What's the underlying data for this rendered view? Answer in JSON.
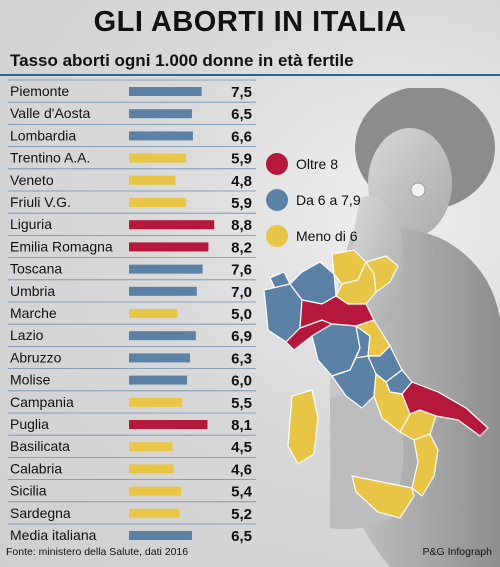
{
  "header": {
    "title": "GLI ABORTI IN ITALIA",
    "subtitle": "Tasso aborti ogni 1.000 donne in età fertile"
  },
  "legend": [
    {
      "label": "Oltre 8",
      "color": "#b5183a"
    },
    {
      "label": "Da 6 a 7,9",
      "color": "#5b82a6"
    },
    {
      "label": "Meno di 6",
      "color": "#e8c547"
    }
  ],
  "footer": {
    "source": "Fonte: ministero della Salute, dati 2016",
    "credit": "P&G Infograph"
  },
  "chart_data": {
    "type": "bar",
    "orientation": "horizontal",
    "title": "GLI ABORTI IN ITALIA",
    "subtitle": "Tasso aborti ogni 1.000 donne in età fertile",
    "categories": [
      "Piemonte",
      "Valle d'Aosta",
      "Lombardia",
      "Trentino A.A.",
      "Veneto",
      "Friuli V.G.",
      "Liguria",
      "Emilia Romagna",
      "Toscana",
      "Umbria",
      "Marche",
      "Lazio",
      "Abruzzo",
      "Molise",
      "Campania",
      "Puglia",
      "Basilicata",
      "Calabria",
      "Sicilia",
      "Sardegna",
      "Media italiana"
    ],
    "values": [
      7.5,
      6.5,
      6.6,
      5.9,
      4.8,
      5.9,
      8.8,
      8.2,
      7.6,
      7.0,
      5.0,
      6.9,
      6.3,
      6.0,
      5.5,
      8.1,
      4.5,
      4.6,
      5.4,
      5.2,
      6.5
    ],
    "value_labels": [
      "7,5",
      "6,5",
      "6,6",
      "5,9",
      "4,8",
      "5,9",
      "8,8",
      "8,2",
      "7,6",
      "7,0",
      "5,0",
      "6,9",
      "6,3",
      "6,0",
      "5,5",
      "8,1",
      "4,5",
      "4,6",
      "5,4",
      "5,2",
      "6,5"
    ],
    "colors": [
      "#5b82a6",
      "#5b82a6",
      "#5b82a6",
      "#e8c547",
      "#e8c547",
      "#e8c547",
      "#b5183a",
      "#b5183a",
      "#5b82a6",
      "#5b82a6",
      "#e8c547",
      "#5b82a6",
      "#5b82a6",
      "#5b82a6",
      "#e8c547",
      "#b5183a",
      "#e8c547",
      "#e8c547",
      "#e8c547",
      "#e8c547",
      "#5b82a6"
    ],
    "xlim": [
      0,
      9.5
    ],
    "grid": false,
    "legend_position": "right"
  }
}
